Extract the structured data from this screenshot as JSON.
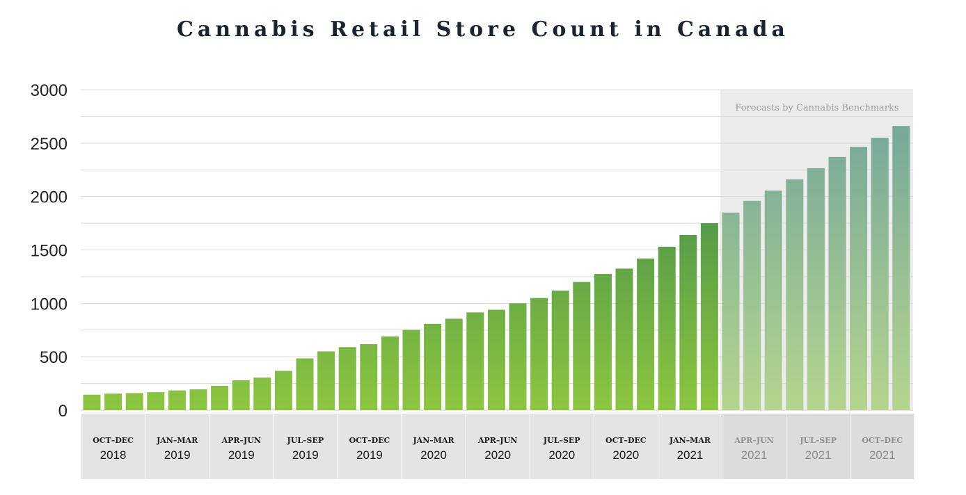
{
  "chart_data": {
    "type": "bar",
    "title": "Cannabis Retail Store Count in Canada",
    "xlabel": "",
    "ylabel": "",
    "ylim": [
      0,
      3000
    ],
    "yticks": [
      0,
      500,
      1000,
      1500,
      2000,
      2500,
      3000
    ],
    "grid": true,
    "forecast_note": "Forecasts by Cannabis Benchmarks",
    "forecast_start_index": 30,
    "values": [
      145,
      155,
      160,
      168,
      185,
      195,
      228,
      280,
      305,
      368,
      485,
      550,
      590,
      618,
      690,
      752,
      808,
      856,
      915,
      940,
      1000,
      1050,
      1120,
      1200,
      1275,
      1325,
      1420,
      1530,
      1640,
      1750,
      1850,
      1960,
      2055,
      2160,
      2265,
      2370,
      2465,
      2550,
      2660
    ],
    "quarters": [
      {
        "period": "OCT–DEC",
        "year": "2018",
        "forecast": false
      },
      {
        "period": "JAN–MAR",
        "year": "2019",
        "forecast": false
      },
      {
        "period": "APR–JUN",
        "year": "2019",
        "forecast": false
      },
      {
        "period": "JUL–SEP",
        "year": "2019",
        "forecast": false
      },
      {
        "period": "OCT–DEC",
        "year": "2019",
        "forecast": false
      },
      {
        "period": "JAN–MAR",
        "year": "2020",
        "forecast": false
      },
      {
        "period": "APR–JUN",
        "year": "2020",
        "forecast": false
      },
      {
        "period": "JUL–SEP",
        "year": "2020",
        "forecast": false
      },
      {
        "period": "OCT–DEC",
        "year": "2020",
        "forecast": false
      },
      {
        "period": "JAN–MAR",
        "year": "2021",
        "forecast": false
      },
      {
        "period": "APR–JUN",
        "year": "2021",
        "forecast": true
      },
      {
        "period": "JUL–SEP",
        "year": "2021",
        "forecast": true
      },
      {
        "period": "OCT–DEC",
        "year": "2021",
        "forecast": true
      }
    ],
    "colors": {
      "actual_top": "#2e7d4f",
      "actual_bottom": "#8dc63f",
      "forecast_top": "#6fa39b",
      "forecast_bottom": "#b5d48e",
      "forecast_band": "#ececec",
      "label_band": "#e3e4e4",
      "label_band_forecast": "#dcdcdc"
    }
  }
}
